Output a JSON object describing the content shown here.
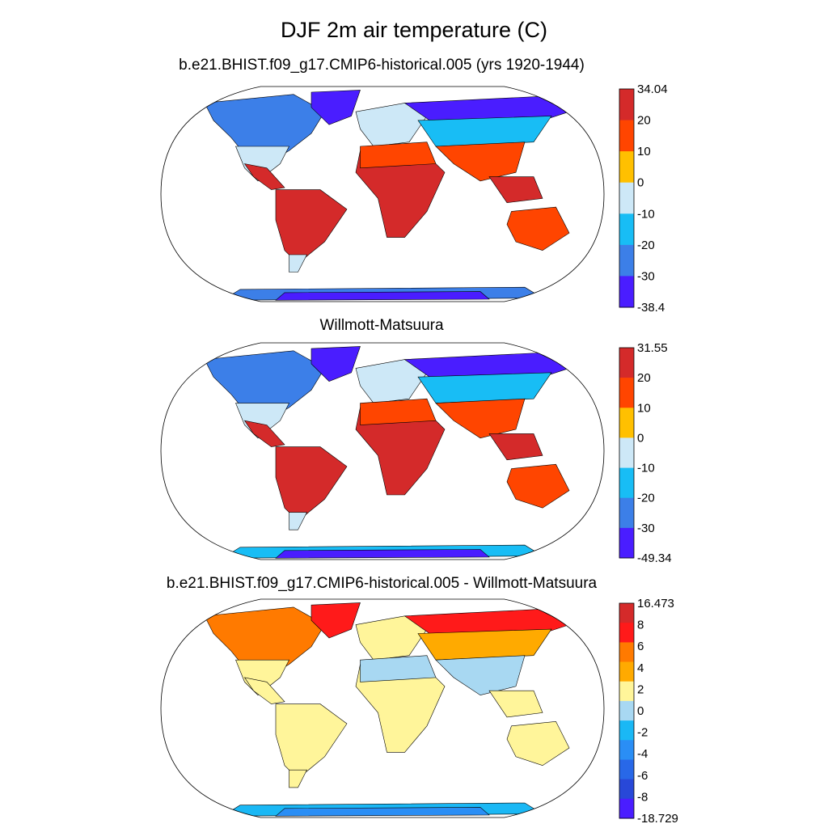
{
  "title": "DJF 2m air temperature (C)",
  "panels": [
    {
      "title": "b.e21.BHIST.f09_g17.CMIP6-historical.005 (yrs 1920-1944)",
      "colorbar": {
        "labels": [
          "34.04",
          "20",
          "10",
          "0",
          "-10",
          "-20",
          "-30",
          "-38.4"
        ],
        "colors": [
          "#d42a2a",
          "#ff4500",
          "#ffc000",
          "#cde8f7",
          "#18bdf5",
          "#3c7fe8",
          "#4a1dff"
        ]
      },
      "region_classes": {
        "arctic": 6,
        "north": 5,
        "midnorth": 4,
        "temperate": 3,
        "subtropic": 1,
        "tropic": 0,
        "south_temperate": 1,
        "south_tip": 3,
        "antarctic_coast": 5,
        "antarctic_interior": 6,
        "greenland": 6
      }
    },
    {
      "title": "Willmott-Matsuura",
      "colorbar": {
        "labels": [
          "31.55",
          "20",
          "10",
          "0",
          "-10",
          "-20",
          "-30",
          "-49.34"
        ],
        "colors": [
          "#d42a2a",
          "#ff4500",
          "#ffc000",
          "#cde8f7",
          "#18bdf5",
          "#3c7fe8",
          "#4a1dff"
        ]
      },
      "region_classes": {
        "arctic": 6,
        "north": 5,
        "midnorth": 4,
        "temperate": 3,
        "subtropic": 1,
        "tropic": 0,
        "south_temperate": 1,
        "south_tip": 3,
        "antarctic_coast": 4,
        "antarctic_interior": 6,
        "greenland": 6
      }
    },
    {
      "title": "b.e21.BHIST.f09_g17.CMIP6-historical.005 - Willmott-Matsuura",
      "colorbar": {
        "labels": [
          "16.473",
          "8",
          "6",
          "4",
          "2",
          "0",
          "-2",
          "-4",
          "-6",
          "-8",
          "-18.729"
        ],
        "colors": [
          "#d42a2a",
          "#ff1a1a",
          "#ff7a00",
          "#ffaa00",
          "#fff59a",
          "#a8d8f2",
          "#1ab8f5",
          "#2a8ef5",
          "#2868e8",
          "#2848d8",
          "#4a1dff"
        ]
      },
      "region_classes": {
        "arctic": 1,
        "north": 2,
        "midnorth": 3,
        "temperate": 4,
        "subtropic": 5,
        "tropic": 4,
        "south_temperate": 4,
        "south_tip": 4,
        "antarctic_coast": 6,
        "antarctic_interior": 7,
        "greenland": 1
      }
    }
  ]
}
